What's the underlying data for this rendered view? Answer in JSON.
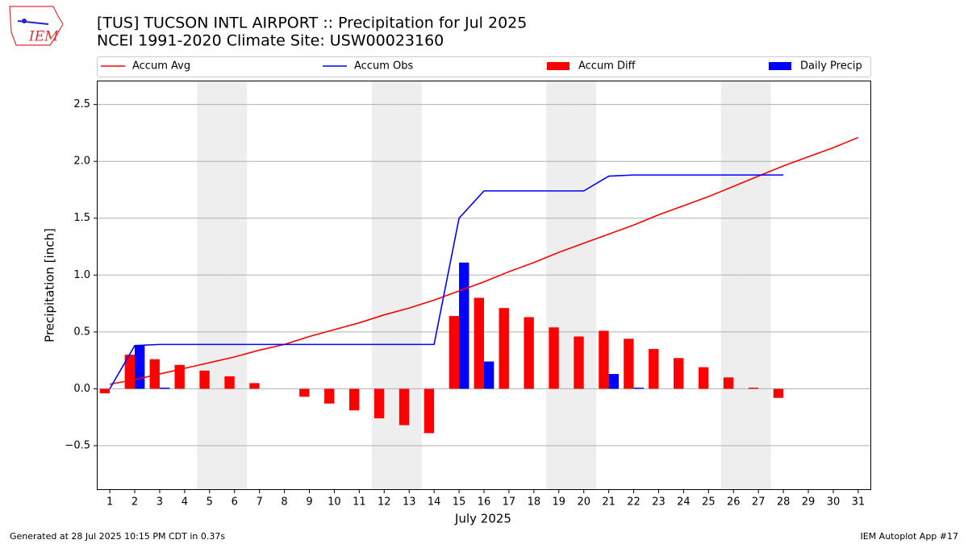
{
  "chart_data": {
    "type": "combo",
    "title": "[TUS] TUCSON INTL AIRPORT :: Precipitation for Jul 2025",
    "subtitle": "NCEI 1991-2020 Climate Site: USW00023160",
    "logo_text": "IEM",
    "x_label": "July 2025",
    "y_label": "Precipitation [inch]",
    "footer_left": "Generated at 28 Jul 2025 10:15 PM CDT in 0.37s",
    "footer_right": "IEM Autoplot App #17",
    "x": [
      1,
      2,
      3,
      4,
      5,
      6,
      7,
      8,
      9,
      10,
      11,
      12,
      13,
      14,
      15,
      16,
      17,
      18,
      19,
      20,
      21,
      22,
      23,
      24,
      25,
      26,
      27,
      28,
      29,
      30,
      31
    ],
    "xlim": [
      0.48,
      31.52
    ],
    "xticks": [
      1,
      2,
      3,
      4,
      5,
      6,
      7,
      8,
      9,
      10,
      11,
      12,
      13,
      14,
      15,
      16,
      17,
      18,
      19,
      20,
      21,
      22,
      23,
      24,
      25,
      26,
      27,
      28,
      29,
      30,
      31
    ],
    "ylim": [
      -0.89,
      2.71
    ],
    "yticks": [
      {
        "value": -0.5,
        "label": "−0.5"
      },
      {
        "value": 0,
        "label": "0.0"
      },
      0.5,
      {
        "value": 1,
        "label": "1.0"
      },
      1.5,
      {
        "value": 2,
        "label": "2.0"
      },
      2.5
    ],
    "grid": true,
    "shaded_days": [
      5,
      6,
      12,
      13,
      19,
      20,
      26,
      27
    ],
    "shade_color": "#eeeeee",
    "series": [
      {
        "name": "Accum Avg",
        "kind": "line",
        "color": "#ff0000",
        "values": [
          0.04,
          0.08,
          0.13,
          0.18,
          0.23,
          0.28,
          0.34,
          0.39,
          0.46,
          0.52,
          0.58,
          0.65,
          0.71,
          0.78,
          0.86,
          0.94,
          1.03,
          1.11,
          1.2,
          1.28,
          1.36,
          1.44,
          1.53,
          1.61,
          1.69,
          1.78,
          1.87,
          1.96,
          2.04,
          2.12,
          2.21
        ]
      },
      {
        "name": "Accum Obs",
        "kind": "line",
        "color": "#0000ff",
        "values": [
          0.0,
          0.38,
          0.39,
          0.39,
          0.39,
          0.39,
          0.39,
          0.39,
          0.39,
          0.39,
          0.39,
          0.39,
          0.39,
          0.39,
          1.5,
          1.74,
          1.74,
          1.74,
          1.74,
          1.74,
          1.87,
          1.88,
          1.88,
          1.88,
          1.88,
          1.88,
          1.88,
          1.88,
          null,
          null,
          null
        ]
      },
      {
        "name": "Accum Diff",
        "kind": "bar",
        "offset": "left",
        "color": "#ff0000",
        "values": [
          -0.04,
          0.3,
          0.26,
          0.21,
          0.16,
          0.11,
          0.05,
          0.0,
          -0.07,
          -0.13,
          -0.19,
          -0.26,
          -0.32,
          -0.39,
          0.64,
          0.8,
          0.71,
          0.63,
          0.54,
          0.46,
          0.51,
          0.44,
          0.35,
          0.27,
          0.19,
          0.1,
          0.01,
          -0.08,
          null,
          null,
          null
        ]
      },
      {
        "name": "Daily Precip",
        "kind": "bar",
        "offset": "right",
        "color": "#0000ff",
        "values": [
          0,
          0.38,
          0.01,
          0,
          0,
          0,
          0,
          0,
          0,
          0,
          0,
          0,
          0,
          0,
          1.11,
          0.24,
          0,
          0,
          0,
          0,
          0.13,
          0.01,
          0,
          0,
          0,
          0,
          0,
          0,
          null,
          null,
          null
        ]
      }
    ]
  }
}
